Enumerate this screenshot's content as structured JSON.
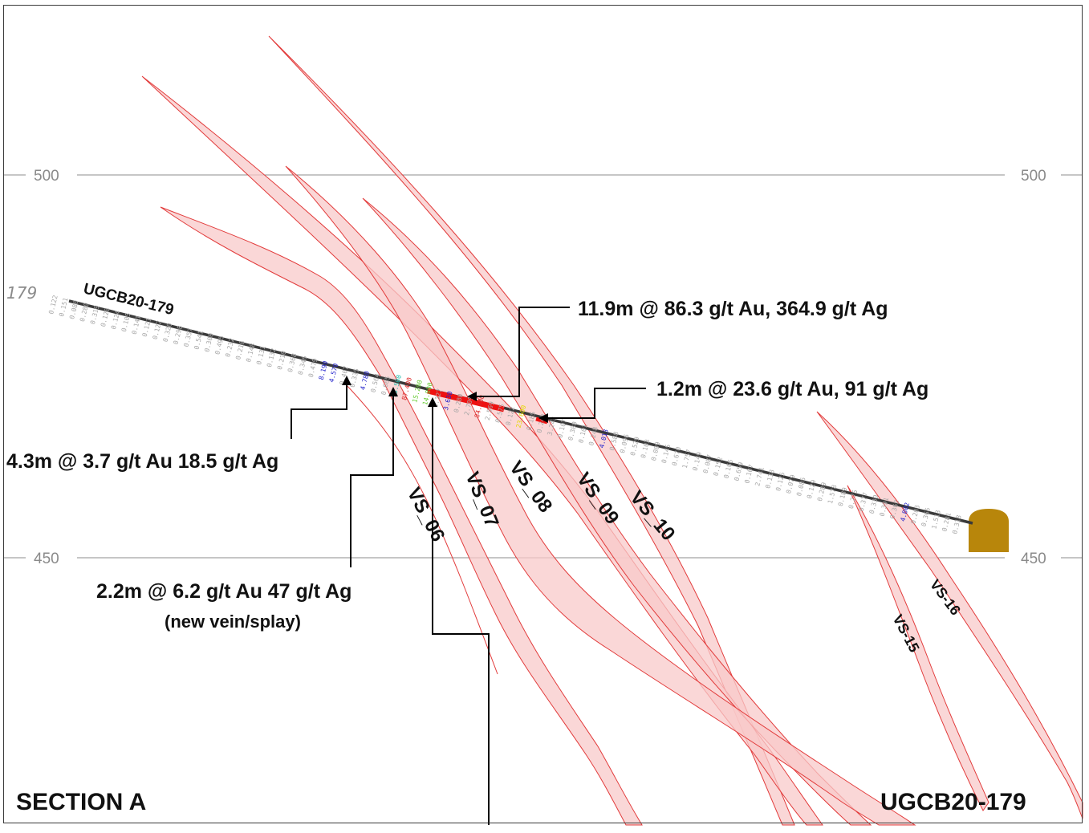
{
  "elevations": [
    {
      "value": 500,
      "label": "500"
    },
    {
      "value": 450,
      "label": "450"
    }
  ],
  "hole": {
    "name": "UGCB20-179",
    "collar_label": "179"
  },
  "veins": [
    {
      "id": "vs06",
      "label": "VS_06"
    },
    {
      "id": "vs07",
      "label": "VS_07"
    },
    {
      "id": "vs08",
      "label": "VS_08"
    },
    {
      "id": "vs09",
      "label": "VS_09"
    },
    {
      "id": "vs10",
      "label": "VS_10"
    },
    {
      "id": "vs15",
      "label": "VS-15"
    },
    {
      "id": "vs16",
      "label": "VS-16"
    }
  ],
  "callouts": {
    "c1": "11.9m @ 86.3 g/t Au,  364.9 g/t Ag",
    "c2": "1.2m @ 23.6 g/t Au, 91 g/t Ag",
    "c3": "4.3m @ 3.7 g/t Au 18.5 g/t Ag",
    "c4_line1": "2.2m @ 6.2 g/t Au 47 g/t Ag",
    "c4_line2": "(new vein/splay)"
  },
  "assays": [
    {
      "v": "0.122",
      "c": "#a8a8a8"
    },
    {
      "v": "0.151",
      "c": "#a8a8a8"
    },
    {
      "v": "0.080",
      "c": "#a8a8a8"
    },
    {
      "v": "0.280",
      "c": "#a8a8a8"
    },
    {
      "v": "0.319",
      "c": "#a8a8a8"
    },
    {
      "v": "0.128",
      "c": "#a8a8a8"
    },
    {
      "v": "0.124",
      "c": "#a8a8a8"
    },
    {
      "v": "0.105",
      "c": "#a8a8a8"
    },
    {
      "v": "0.141",
      "c": "#a8a8a8"
    },
    {
      "v": "0.121",
      "c": "#a8a8a8"
    },
    {
      "v": "0.122",
      "c": "#a8a8a8"
    },
    {
      "v": "0.320",
      "c": "#a8a8a8"
    },
    {
      "v": "0.298",
      "c": "#a8a8a8"
    },
    {
      "v": "0.357",
      "c": "#a8a8a8"
    },
    {
      "v": "0.541",
      "c": "#a8a8a8"
    },
    {
      "v": "0.300",
      "c": "#a8a8a8"
    },
    {
      "v": "0.495",
      "c": "#a8a8a8"
    },
    {
      "v": "0.232",
      "c": "#a8a8a8"
    },
    {
      "v": "0.218",
      "c": "#a8a8a8"
    },
    {
      "v": "0.148",
      "c": "#a8a8a8"
    },
    {
      "v": "0.131",
      "c": "#a8a8a8"
    },
    {
      "v": "0.132",
      "c": "#a8a8a8"
    },
    {
      "v": "0.210",
      "c": "#a8a8a8"
    },
    {
      "v": "0.368",
      "c": "#a8a8a8"
    },
    {
      "v": "0.346",
      "c": "#a8a8a8"
    },
    {
      "v": "0.479",
      "c": "#a8a8a8"
    },
    {
      "v": "8.190",
      "c": "#2222cc"
    },
    {
      "v": "4.570",
      "c": "#2222cc"
    },
    {
      "v": "0.407",
      "c": "#a8a8a8"
    },
    {
      "v": "0.335",
      "c": "#a8a8a8"
    },
    {
      "v": "4.780",
      "c": "#2222cc"
    },
    {
      "v": "0.564",
      "c": "#a8a8a8"
    },
    {
      "v": "0.665",
      "c": "#a8a8a8"
    },
    {
      "v": "13.500",
      "c": "#22bbaa"
    },
    {
      "v": "87.400",
      "c": "#dd2222"
    },
    {
      "v": "15.200",
      "c": "#66cc33"
    },
    {
      "v": "14.800",
      "c": "#66cc33"
    },
    {
      "v": "1.327",
      "c": "#a8a8a8"
    },
    {
      "v": "3.630",
      "c": "#2222cc"
    },
    {
      "v": "0.280",
      "c": "#a8a8a8"
    },
    {
      "v": "2.709",
      "c": "#a8a8a8"
    },
    {
      "v": "84.400",
      "c": "#dd2222"
    },
    {
      "v": "2.569",
      "c": "#a8a8a8"
    },
    {
      "v": "0.575",
      "c": "#a8a8a8"
    },
    {
      "v": "0.122",
      "c": "#a8a8a8"
    },
    {
      "v": "23.600",
      "c": "#e6d800"
    },
    {
      "v": "0.185",
      "c": "#a8a8a8"
    },
    {
      "v": "0.243",
      "c": "#a8a8a8"
    },
    {
      "v": "3.243",
      "c": "#a8a8a8"
    },
    {
      "v": "0.107",
      "c": "#a8a8a8"
    },
    {
      "v": "0.380",
      "c": "#a8a8a8"
    },
    {
      "v": "0.101",
      "c": "#a8a8a8"
    },
    {
      "v": "0.248",
      "c": "#a8a8a8"
    },
    {
      "v": "4.013",
      "c": "#2222cc"
    },
    {
      "v": "0.588",
      "c": "#a8a8a8"
    },
    {
      "v": "0.096",
      "c": "#a8a8a8"
    },
    {
      "v": "0.529",
      "c": "#a8a8a8"
    },
    {
      "v": "0.103",
      "c": "#a8a8a8"
    },
    {
      "v": "0.089",
      "c": "#a8a8a8"
    },
    {
      "v": "0.145",
      "c": "#a8a8a8"
    },
    {
      "v": "0.670",
      "c": "#a8a8a8"
    },
    {
      "v": "1.757",
      "c": "#a8a8a8"
    },
    {
      "v": "0.149",
      "c": "#a8a8a8"
    },
    {
      "v": "0.087",
      "c": "#a8a8a8"
    },
    {
      "v": "0.152",
      "c": "#a8a8a8"
    },
    {
      "v": "0.166",
      "c": "#a8a8a8"
    },
    {
      "v": "0.659",
      "c": "#a8a8a8"
    },
    {
      "v": "0.107",
      "c": "#a8a8a8"
    },
    {
      "v": "2.741",
      "c": "#a8a8a8"
    },
    {
      "v": "0.138",
      "c": "#a8a8a8"
    },
    {
      "v": "0.125",
      "c": "#a8a8a8"
    },
    {
      "v": "0.079",
      "c": "#a8a8a8"
    },
    {
      "v": "0.085",
      "c": "#a8a8a8"
    },
    {
      "v": "0.129",
      "c": "#a8a8a8"
    },
    {
      "v": "0.289",
      "c": "#a8a8a8"
    },
    {
      "v": "1.578",
      "c": "#a8a8a8"
    },
    {
      "v": "0.189",
      "c": "#a8a8a8"
    },
    {
      "v": "0.275",
      "c": "#a8a8a8"
    },
    {
      "v": "0.377",
      "c": "#a8a8a8"
    },
    {
      "v": "0.330",
      "c": "#a8a8a8"
    },
    {
      "v": "0.391",
      "c": "#a8a8a8"
    },
    {
      "v": "0.362",
      "c": "#a8a8a8"
    },
    {
      "v": "4.802",
      "c": "#2222cc"
    },
    {
      "v": "0.203",
      "c": "#a8a8a8"
    },
    {
      "v": "0.365",
      "c": "#a8a8a8"
    },
    {
      "v": "1.513",
      "c": "#a8a8a8"
    },
    {
      "v": "0.281",
      "c": "#a8a8a8"
    },
    {
      "v": "0.318",
      "c": "#a8a8a8"
    }
  ],
  "footer": {
    "left": "SECTION  A",
    "right": "UGCB20-179"
  },
  "colors": {
    "vein_fill": "#f8caca",
    "vein_stroke": "#e23b3b",
    "hole": "#3a3a3a",
    "intercept": "#ee1111",
    "tunnel": "#b8860b"
  }
}
